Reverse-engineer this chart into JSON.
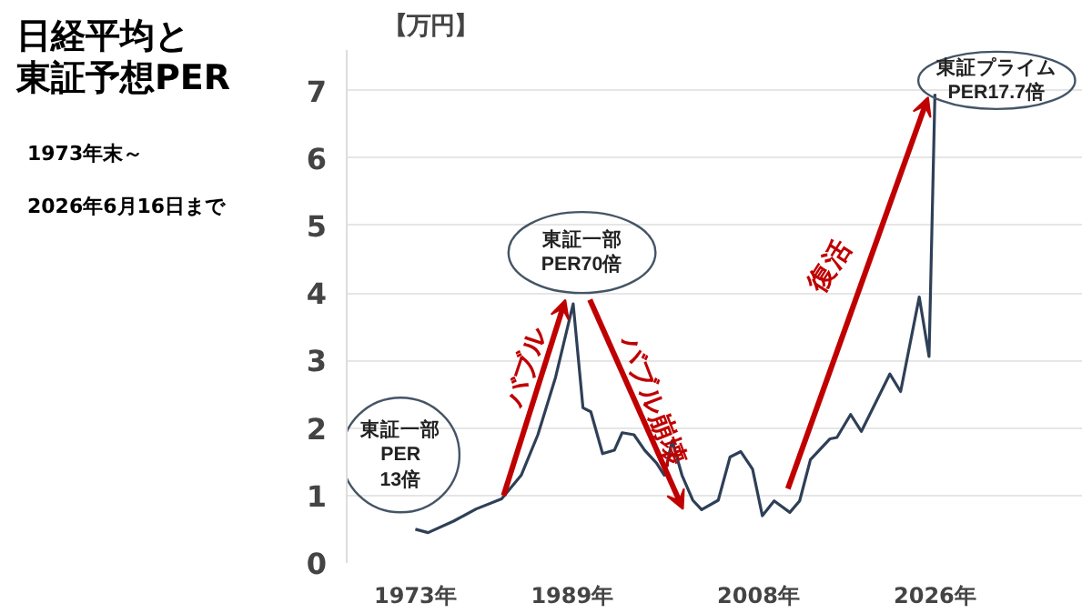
{
  "chart_data": {
    "type": "line",
    "title": "日経平均と",
    "subtitle": "東証予想PER",
    "ylabel": "【万円】",
    "x": [
      1973,
      1974.3,
      1976.9,
      1979.2,
      1981.8,
      1983.8,
      1985.5,
      1987.3,
      1989.1,
      1990.1,
      1990.9,
      1992.1,
      1993.3,
      1994.1,
      1995.3,
      1996.4,
      1997.6,
      1998.4,
      1999.2,
      2000.2,
      2001.3,
      2002.2,
      2003.9,
      2005.1,
      2006.2,
      2007.4,
      2008.4,
      2009.6,
      2011.2,
      2012.2,
      2013.3,
      2015.3,
      2016.0,
      2017.4,
      2018.5,
      2021.4,
      2022.5,
      2024.4,
      2025.4,
      2026.0
    ],
    "series": [
      {
        "color": "#2e4057",
        "values": [
          0.5,
          0.45,
          0.62,
          0.8,
          0.95,
          1.3,
          1.9,
          2.75,
          3.84,
          2.3,
          2.24,
          1.62,
          1.67,
          1.93,
          1.9,
          1.67,
          1.48,
          1.3,
          1.81,
          1.3,
          0.93,
          0.79,
          0.93,
          1.57,
          1.65,
          1.39,
          0.7,
          0.92,
          0.75,
          0.92,
          1.53,
          1.84,
          1.86,
          2.2,
          1.95,
          2.8,
          2.54,
          3.94,
          3.06,
          6.95
        ]
      }
    ],
    "xlim": [
      1966,
      2041
    ],
    "ylim": [
      0,
      7.6
    ],
    "xticks": [
      {
        "value": 1973,
        "label": "1973年"
      },
      {
        "value": 1989,
        "label": "1989年"
      },
      {
        "value": 2008,
        "label": "2008年"
      },
      {
        "value": 2026,
        "label": "2026年"
      }
    ],
    "yticks": [
      0,
      1,
      2,
      3,
      4,
      5,
      6,
      7
    ],
    "grid": "y",
    "marker": "none",
    "line_style": "solid",
    "annotations": [
      "1973年末～",
      "2026年6月16日まで",
      "バブル",
      "バブル崩壊",
      "復活",
      "東証一部\nPER\n13倍",
      "東証一部\nPER70倍",
      "東証プライム\nPER17.7倍"
    ]
  }
}
